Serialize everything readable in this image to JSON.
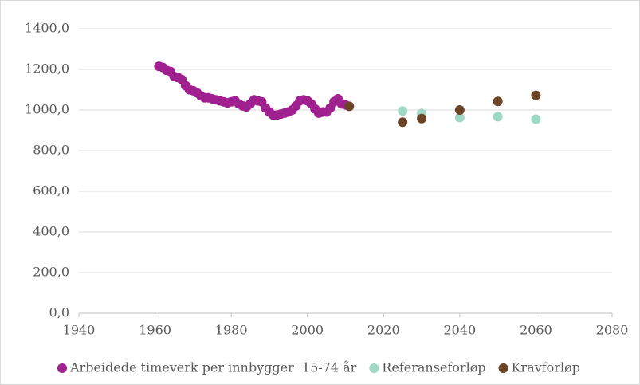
{
  "chart_data": {
    "type": "scatter",
    "xlim": [
      1940,
      2080
    ],
    "xticks": [
      1940,
      1960,
      1980,
      2000,
      2020,
      2040,
      2060,
      2080
    ],
    "ylim": [
      0,
      1400
    ],
    "yticks": [
      {
        "value": 0,
        "label": "0,0"
      },
      {
        "value": 200,
        "label": "200,0"
      },
      {
        "value": 400,
        "label": "400,0"
      },
      {
        "value": 600,
        "label": "600,0"
      },
      {
        "value": 800,
        "label": "800,0"
      },
      {
        "value": 1000,
        "label": "1000,0"
      },
      {
        "value": 1200,
        "label": "1200,0"
      },
      {
        "value": 1400,
        "label": "1400,0"
      }
    ],
    "grid": true,
    "legend": "bottom",
    "series": [
      {
        "name": "Arbeidede timeverk per innbygger  15-74 år",
        "color": "#a0208f",
        "x": [
          1961,
          1962,
          1963,
          1964,
          1965,
          1966,
          1967,
          1968,
          1969,
          1970,
          1971,
          1972,
          1973,
          1974,
          1975,
          1976,
          1977,
          1978,
          1979,
          1980,
          1981,
          1982,
          1983,
          1984,
          1985,
          1986,
          1987,
          1988,
          1989,
          1990,
          1991,
          1992,
          1993,
          1994,
          1995,
          1996,
          1997,
          1998,
          1999,
          2000,
          2001,
          2002,
          2003,
          2004,
          2005,
          2006,
          2007,
          2008,
          2009,
          2010
        ],
        "values": [
          1215,
          1210,
          1195,
          1190,
          1165,
          1160,
          1150,
          1120,
          1100,
          1095,
          1085,
          1070,
          1060,
          1060,
          1055,
          1050,
          1045,
          1040,
          1035,
          1040,
          1045,
          1030,
          1020,
          1015,
          1030,
          1050,
          1045,
          1040,
          1010,
          990,
          975,
          975,
          980,
          985,
          990,
          1000,
          1020,
          1045,
          1050,
          1045,
          1030,
          1005,
          985,
          990,
          990,
          1010,
          1040,
          1055,
          1030,
          1025
        ]
      },
      {
        "name": "Referanseforløp",
        "color": "#9fd8c4",
        "x": [
          2025,
          2030,
          2040,
          2050,
          2060
        ],
        "values": [
          995,
          983,
          963,
          967,
          955
        ]
      },
      {
        "name": "Kravforløp",
        "color": "#6b4426",
        "x": [
          2011,
          2025,
          2030,
          2040,
          2050,
          2060
        ],
        "values": [
          1018,
          940,
          958,
          1000,
          1042,
          1072
        ]
      }
    ]
  }
}
